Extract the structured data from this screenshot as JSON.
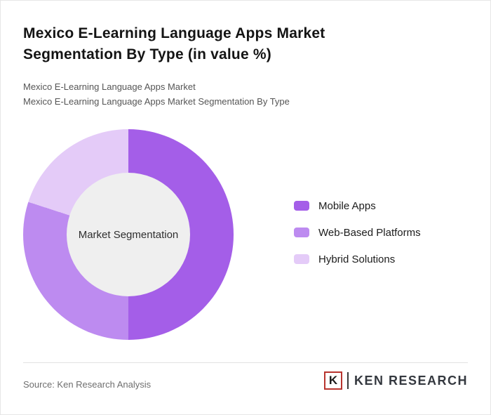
{
  "page": {
    "title": "Mexico E-Learning Language Apps Market Segmentation By Type (in value %)",
    "subtitle1": "Mexico E-Learning Language Apps Market",
    "subtitle2": "Mexico E-Learning Language Apps Market Segmentation By Type",
    "source": "Source: Ken Research Analysis"
  },
  "logo": {
    "monogram": "K",
    "brand": "KEN RESEARCH",
    "accent_color": "#b8342e"
  },
  "chart_data": {
    "type": "pie",
    "donut": true,
    "title": "Mexico E-Learning Language Apps Market Segmentation By Type (in value %)",
    "center_label": "Market Segmentation",
    "unit": "% of value",
    "start_angle_deg": 0,
    "direction": "clockwise",
    "legend_position": "right",
    "hole_color": "#efefef",
    "series": [
      {
        "name": "Mobile Apps",
        "value": 50,
        "color": "#a45ee8"
      },
      {
        "name": "Web-Based Platforms",
        "value": 30,
        "color": "#bd8bf0"
      },
      {
        "name": "Hybrid Solutions",
        "value": 20,
        "color": "#e4cbf8"
      }
    ]
  }
}
